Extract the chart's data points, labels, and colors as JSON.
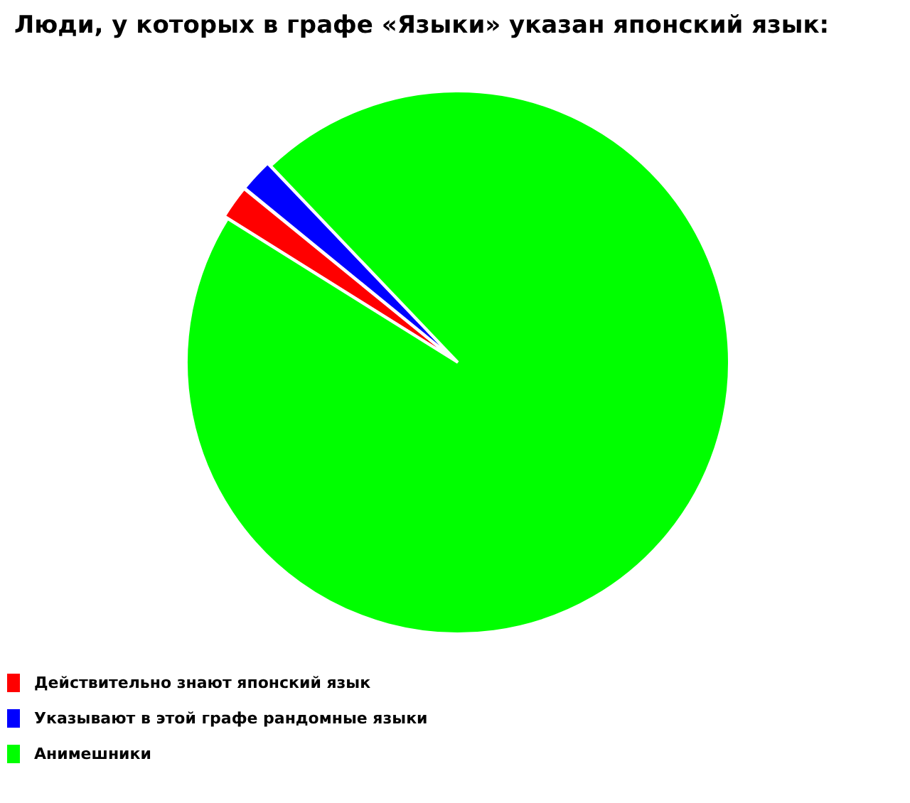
{
  "chart_data": {
    "type": "pie",
    "title": "Люди, у которых в графе «Языки» указан японский язык:",
    "categories": [
      "Действительно знают японский язык",
      "Указывают в этой графе рандомные языки",
      "Анимешники"
    ],
    "values": [
      2,
      2,
      96
    ],
    "colors": [
      "#ff0000",
      "#0000ff",
      "#00ff00"
    ],
    "legend": "bottom left"
  }
}
